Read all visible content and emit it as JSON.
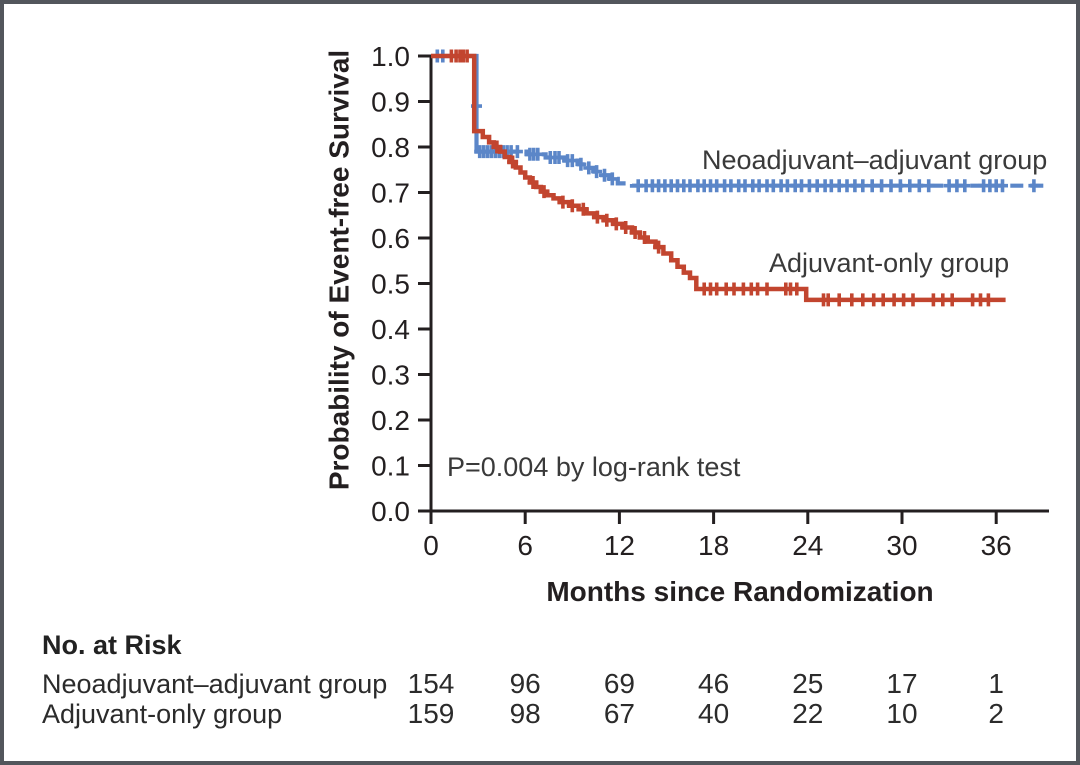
{
  "colors": {
    "neoadjuvant_blue": "#5b86c8",
    "adjuvant_red": "#c2452f",
    "axis": "#231f20",
    "label_text": "#3a3a3a",
    "frame_border": "#53565c",
    "background": "#ffffff"
  },
  "chart_data": {
    "type": "line",
    "subtype": "kaplan_meier_step_curves",
    "title": "",
    "xlabel": "Months since Randomization",
    "ylabel": "Probability of Event-free Survival",
    "xticks": [
      0,
      6,
      12,
      18,
      24,
      30,
      36
    ],
    "xlim": [
      0,
      39.5
    ],
    "ylim": [
      0,
      1
    ],
    "ytick_step": 0.1,
    "grid": false,
    "legend_position": "labels-above-curves",
    "annotations": [
      {
        "text": "P=0.004 by log-rank test",
        "x_month": 1.0,
        "y_prob": 0.1
      }
    ],
    "series": [
      {
        "name": "Neoadjuvant–adjuvant group",
        "color_key": "neoadjuvant_blue",
        "line_style": "dashed",
        "dash_from_month": 3.4,
        "steps": [
          [
            0,
            1.0
          ],
          [
            2.9,
            0.79
          ],
          [
            6.1,
            0.784
          ],
          [
            7.3,
            0.777
          ],
          [
            8.5,
            0.77
          ],
          [
            9.4,
            0.762
          ],
          [
            9.9,
            0.754
          ],
          [
            10.4,
            0.746
          ],
          [
            10.9,
            0.738
          ],
          [
            11.4,
            0.73
          ],
          [
            11.9,
            0.72
          ],
          [
            12.8,
            0.715
          ],
          [
            39.0,
            0.715
          ]
        ],
        "censor_months": [
          0.4,
          0.75,
          3.1,
          3.35,
          3.6,
          3.85,
          4.1,
          4.35,
          4.6,
          4.85,
          5.1,
          5.5,
          6.3,
          6.55,
          6.8,
          7.6,
          7.9,
          8.15,
          8.7,
          9.0,
          9.55,
          10.05,
          10.55,
          11.05,
          11.55,
          13.2,
          13.7,
          14.1,
          14.5,
          14.9,
          15.3,
          15.7,
          16.1,
          16.5,
          17.0,
          17.4,
          17.8,
          18.2,
          18.7,
          19.1,
          19.6,
          20.0,
          20.5,
          20.9,
          21.4,
          21.8,
          22.3,
          22.7,
          23.2,
          23.6,
          24.1,
          24.6,
          25.1,
          25.5,
          26.0,
          26.5,
          27.0,
          27.5,
          28.1,
          28.7,
          29.3,
          29.9,
          30.5,
          31.1,
          31.7,
          33.0,
          33.5,
          34.0,
          35.2,
          35.6,
          36.0,
          36.4,
          38.4
        ],
        "extra_censors": [
          [
            2.9,
            0.89
          ]
        ]
      },
      {
        "name": "Adjuvant-only group",
        "color_key": "adjuvant_red",
        "line_style": "solid",
        "steps": [
          [
            0,
            1.0
          ],
          [
            2.75,
            0.835
          ],
          [
            3.3,
            0.822
          ],
          [
            3.7,
            0.81
          ],
          [
            4.0,
            0.8
          ],
          [
            4.4,
            0.79
          ],
          [
            4.7,
            0.778
          ],
          [
            5.0,
            0.767
          ],
          [
            5.4,
            0.755
          ],
          [
            5.7,
            0.744
          ],
          [
            6.0,
            0.733
          ],
          [
            6.3,
            0.722
          ],
          [
            6.7,
            0.712
          ],
          [
            7.0,
            0.702
          ],
          [
            7.4,
            0.694
          ],
          [
            7.8,
            0.687
          ],
          [
            8.2,
            0.679
          ],
          [
            8.8,
            0.671
          ],
          [
            9.4,
            0.663
          ],
          [
            9.9,
            0.654
          ],
          [
            10.4,
            0.646
          ],
          [
            11.0,
            0.639
          ],
          [
            11.6,
            0.631
          ],
          [
            12.2,
            0.623
          ],
          [
            12.8,
            0.612
          ],
          [
            13.3,
            0.601
          ],
          [
            13.8,
            0.592
          ],
          [
            14.3,
            0.58
          ],
          [
            14.8,
            0.566
          ],
          [
            15.3,
            0.551
          ],
          [
            15.7,
            0.537
          ],
          [
            16.1,
            0.524
          ],
          [
            16.5,
            0.512
          ],
          [
            16.9,
            0.488
          ],
          [
            23.9,
            0.464
          ],
          [
            36.6,
            0.464
          ]
        ],
        "censor_months": [
          1.3,
          1.6,
          1.85,
          2.05,
          2.3,
          4.2,
          5.2,
          6.5,
          7.2,
          8.4,
          9.0,
          9.7,
          10.6,
          11.2,
          11.8,
          12.4,
          13.0,
          13.6,
          14.5,
          17.4,
          17.8,
          18.2,
          18.8,
          19.3,
          19.9,
          20.4,
          20.8,
          21.4,
          22.6,
          22.9,
          23.3,
          25.0,
          25.3,
          26.0,
          26.8,
          27.5,
          28.2,
          28.8,
          29.5,
          30.1,
          30.7,
          32.0,
          32.6,
          33.2,
          34.5,
          35.0,
          35.5
        ]
      }
    ],
    "at_risk": {
      "title": "No. at Risk",
      "rows": [
        {
          "label": "Neoadjuvant–adjuvant group",
          "counts": [
            154,
            96,
            69,
            46,
            25,
            17,
            1
          ]
        },
        {
          "label": "Adjuvant-only group",
          "counts": [
            159,
            98,
            67,
            40,
            22,
            10,
            2
          ]
        }
      ]
    }
  }
}
